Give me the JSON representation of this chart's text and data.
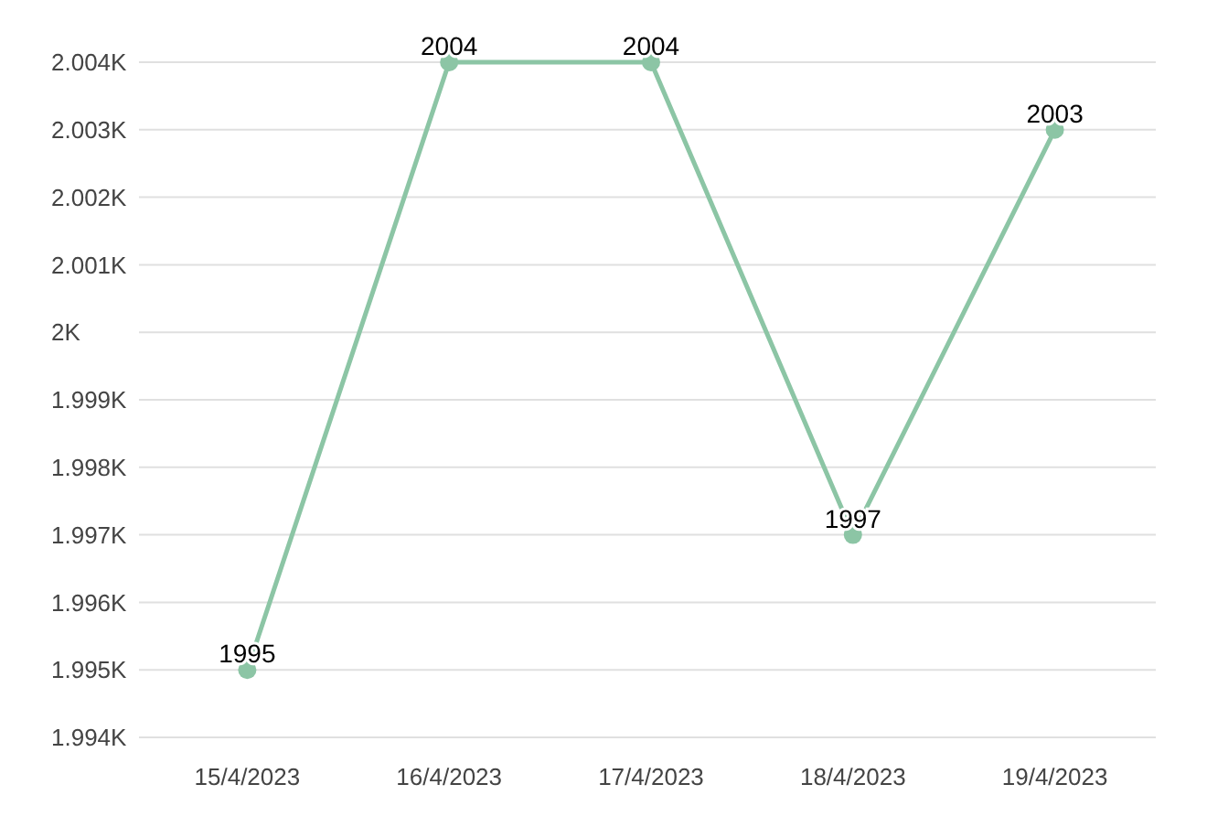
{
  "chart_data": {
    "type": "line",
    "categories": [
      "15/4/2023",
      "16/4/2023",
      "17/4/2023",
      "18/4/2023",
      "19/4/2023"
    ],
    "series": [
      {
        "color": "#8cc5a5",
        "values": [
          1995,
          2004,
          2004,
          1997,
          2003
        ]
      }
    ],
    "ylim": [
      1994,
      2004
    ],
    "yticks": [
      {
        "value": 1994,
        "label": "1.994K"
      },
      {
        "value": 1995,
        "label": "1.995K"
      },
      {
        "value": 1996,
        "label": "1.996K"
      },
      {
        "value": 1997,
        "label": "1.997K"
      },
      {
        "value": 1998,
        "label": "1.998K"
      },
      {
        "value": 1999,
        "label": "1.999K"
      },
      {
        "value": 2000,
        "label": "2K"
      },
      {
        "value": 2001,
        "label": "2.001K"
      },
      {
        "value": 2002,
        "label": "2.002K"
      },
      {
        "value": 2003,
        "label": "2.003K"
      },
      {
        "value": 2004,
        "label": "2.004K"
      }
    ],
    "grid": "y",
    "marker": "circle",
    "line_style": "solid",
    "data_labels": true
  }
}
